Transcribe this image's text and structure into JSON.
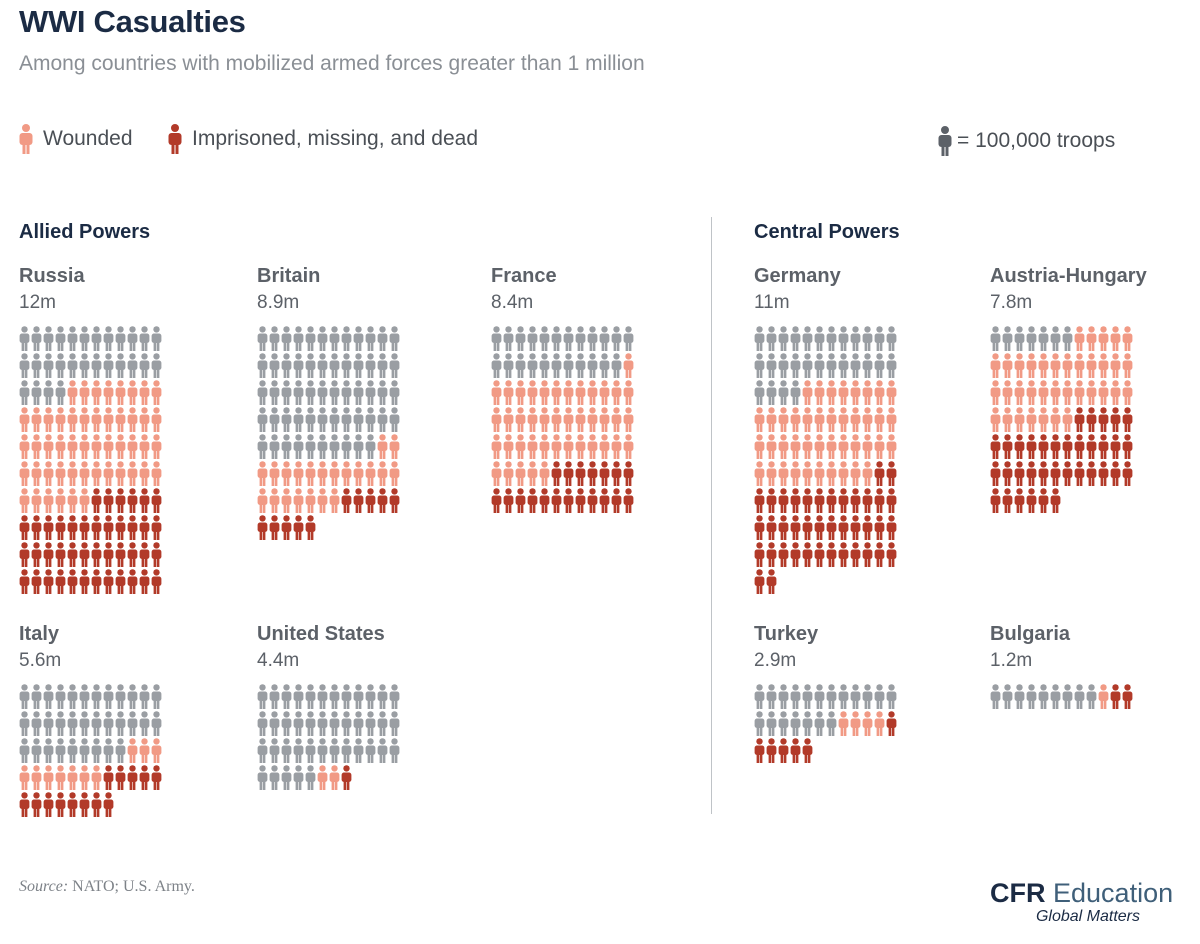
{
  "header": {
    "title": "WWI Casualties",
    "subtitle": "Among countries with mobilized armed forces greater than 1 million"
  },
  "legend": {
    "wounded_label": "Wounded",
    "dead_label": "Imprisoned, missing, and dead",
    "scale_label": "= 100,000 troops"
  },
  "groups": {
    "allied": "Allied Powers",
    "central": "Central Powers"
  },
  "colors": {
    "unharmed": "#9a9ea3",
    "wounded": "#f19a85",
    "dead": "#b23a29",
    "title": "#1b2b44"
  },
  "chart_data": {
    "type": "pictogram",
    "unit": "1 figure = 100,000 troops (mobilized)",
    "figures_per_row": 12,
    "series": [
      "Unharmed",
      "Wounded",
      "Imprisoned, missing, and dead"
    ],
    "countries": [
      {
        "name": "Russia",
        "label": "12m",
        "group": "Allied Powers",
        "total": 120,
        "wounded": 50,
        "dead": 42
      },
      {
        "name": "Britain",
        "label": "8.9m",
        "group": "Allied Powers",
        "total": 89,
        "wounded": 21,
        "dead": 10
      },
      {
        "name": "France",
        "label": "8.4m",
        "group": "Allied Powers",
        "total": 84,
        "wounded": 42,
        "dead": 19
      },
      {
        "name": "Germany",
        "label": "11m",
        "group": "Central Powers",
        "total": 110,
        "wounded": 42,
        "dead": 40
      },
      {
        "name": "Austria-Hungary",
        "label": "7.8m",
        "group": "Central Powers",
        "total": 78,
        "wounded": 36,
        "dead": 35
      },
      {
        "name": "Italy",
        "label": "5.6m",
        "group": "Allied Powers",
        "total": 56,
        "wounded": 10,
        "dead": 13
      },
      {
        "name": "United States",
        "label": "4.4m",
        "group": "Allied Powers",
        "total": 44,
        "wounded": 2,
        "dead": 1
      },
      {
        "name": "Turkey",
        "label": "2.9m",
        "group": "Central Powers",
        "total": 29,
        "wounded": 4,
        "dead": 6
      },
      {
        "name": "Bulgaria",
        "label": "1.2m",
        "group": "Central Powers",
        "total": 12,
        "wounded": 1,
        "dead": 2
      }
    ]
  },
  "footer": {
    "source_label": "Source:",
    "source_text": "NATO; U.S. Army.",
    "logo_a": "CFR",
    "logo_b": "Education",
    "logo_tagline": "Global Matters"
  }
}
